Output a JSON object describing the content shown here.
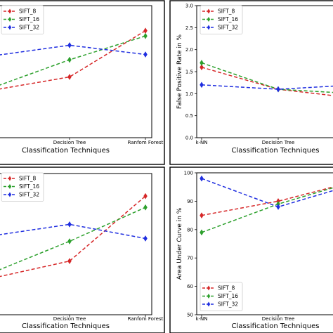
{
  "chart_data": [
    {
      "type": "line",
      "categories": [
        "k-NN",
        "Decision Tree",
        "Ranfom Forest"
      ],
      "visible_tick_labels": [
        "Decision Tree",
        "Ranfom Forest"
      ],
      "xlabel": "Classification Techniques",
      "ylabel": "",
      "legend": "top-left",
      "grid": false,
      "series": [
        {
          "name": "SIFT_8",
          "color": "#d62728",
          "values": [
            0.36,
            0.46,
            0.81
          ]
        },
        {
          "name": "SIFT_16",
          "color": "#2ca02c",
          "values": [
            0.38,
            0.59,
            0.77
          ]
        },
        {
          "name": "SIFT_32",
          "color": "#1f2ee0",
          "values": [
            0.62,
            0.7,
            0.63
          ]
        }
      ]
    },
    {
      "type": "line",
      "categories": [
        "k-NN",
        "Decision Tree",
        "Ranfom Forest"
      ],
      "visible_tick_labels": [
        "k-NN",
        "Decision Tree"
      ],
      "xlabel": "Classification Techniques",
      "ylabel": "False Positive Rate in %",
      "ylim": [
        0.0,
        3.0
      ],
      "yticks": [
        "0.0",
        "0.5",
        "1.0",
        "1.5",
        "2.0",
        "2.5",
        "3.0"
      ],
      "legend": "top-left",
      "grid": false,
      "series": [
        {
          "name": "SIFT_8",
          "color": "#d62728",
          "values": [
            1.6,
            1.1,
            0.9
          ]
        },
        {
          "name": "SIFT_16",
          "color": "#2ca02c",
          "values": [
            1.7,
            1.1,
            1.0
          ]
        },
        {
          "name": "SIFT_32",
          "color": "#1f2ee0",
          "values": [
            1.2,
            1.1,
            1.2
          ]
        }
      ]
    },
    {
      "type": "line",
      "categories": [
        "k-NN",
        "Decision Tree",
        "Ranfom Forest"
      ],
      "visible_tick_labels": [
        "Decision Tree",
        "Ranfom Forest"
      ],
      "xlabel": "Classification Techniques",
      "ylabel": "",
      "legend": "top-left",
      "grid": false,
      "series": [
        {
          "name": "SIFT_8",
          "color": "#d62728",
          "values": [
            0.26,
            0.38,
            0.84
          ]
        },
        {
          "name": "SIFT_16",
          "color": "#2ca02c",
          "values": [
            0.3,
            0.52,
            0.76
          ]
        },
        {
          "name": "SIFT_32",
          "color": "#1f2ee0",
          "values": [
            0.56,
            0.64,
            0.54
          ]
        }
      ]
    },
    {
      "type": "line",
      "categories": [
        "k-NN",
        "Decision Tree",
        "Ranfom Forest"
      ],
      "visible_tick_labels": [
        "k-NN",
        "Decision Tree"
      ],
      "xlabel": "Classification Techniques",
      "ylabel": "Area Under Curve in %",
      "ylim": [
        50,
        100
      ],
      "yticks": [
        "50",
        "60",
        "70",
        "80",
        "90",
        "100"
      ],
      "legend": "bottom-left",
      "grid": false,
      "series": [
        {
          "name": "SIFT_8",
          "color": "#d62728",
          "values": [
            85,
            90,
            97
          ]
        },
        {
          "name": "SIFT_16",
          "color": "#2ca02c",
          "values": [
            79,
            89,
            97
          ]
        },
        {
          "name": "SIFT_32",
          "color": "#1f2ee0",
          "values": [
            98,
            88,
            96
          ]
        }
      ]
    }
  ]
}
